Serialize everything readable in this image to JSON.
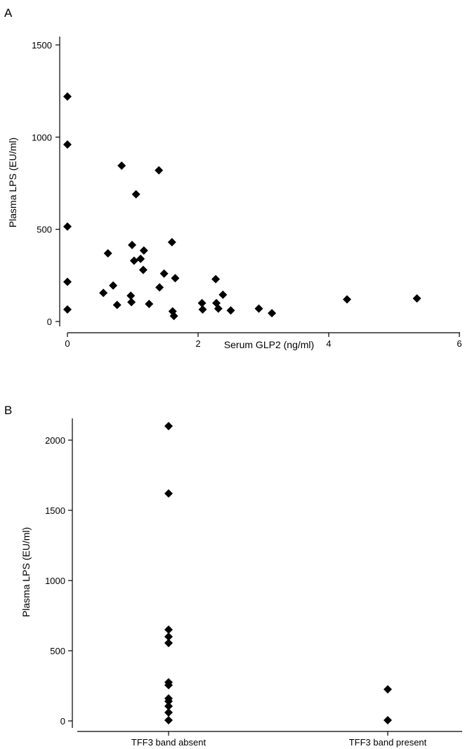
{
  "chart_data": [
    {
      "type": "scatter",
      "panel_label": "A",
      "xlabel": "Serum GLP2 (ng/ml)",
      "ylabel": "Plasma LPS (EU/ml)",
      "xlim": [
        0,
        6
      ],
      "ylim": [
        0,
        1500
      ],
      "xticks": [
        0,
        2,
        4,
        6
      ],
      "yticks": [
        0,
        500,
        1000,
        1500
      ],
      "grid": false,
      "marker": "diamond",
      "points": [
        [
          0,
          1220
        ],
        [
          0,
          960
        ],
        [
          0,
          515
        ],
        [
          0,
          215
        ],
        [
          0,
          65
        ],
        [
          0.55,
          155
        ],
        [
          0.62,
          370
        ],
        [
          0.7,
          195
        ],
        [
          0.76,
          90
        ],
        [
          0.83,
          845
        ],
        [
          0.97,
          140
        ],
        [
          0.98,
          105
        ],
        [
          0.99,
          415
        ],
        [
          1.02,
          330
        ],
        [
          1.05,
          690
        ],
        [
          1.12,
          340
        ],
        [
          1.16,
          280
        ],
        [
          1.17,
          385
        ],
        [
          1.25,
          95
        ],
        [
          1.4,
          820
        ],
        [
          1.41,
          185
        ],
        [
          1.48,
          260
        ],
        [
          1.6,
          430
        ],
        [
          1.61,
          55
        ],
        [
          1.63,
          30
        ],
        [
          1.65,
          235
        ],
        [
          2.06,
          100
        ],
        [
          2.07,
          65
        ],
        [
          2.27,
          230
        ],
        [
          2.28,
          100
        ],
        [
          2.31,
          70
        ],
        [
          2.38,
          145
        ],
        [
          2.5,
          60
        ],
        [
          2.93,
          70
        ],
        [
          3.13,
          45
        ],
        [
          4.28,
          120
        ],
        [
          5.35,
          125
        ]
      ]
    },
    {
      "type": "strip",
      "panel_label": "B",
      "xlabel": "",
      "ylabel": "Plasma LPS (EU/ml)",
      "categories": [
        "TFF3 band absent",
        "TFF3 band present"
      ],
      "ylim": [
        0,
        2150
      ],
      "yticks": [
        0,
        500,
        1000,
        1500,
        2000
      ],
      "grid": false,
      "marker": "diamond",
      "series": [
        {
          "category": "TFF3 band absent",
          "values": [
            2100,
            1620,
            650,
            600,
            555,
            275,
            255,
            160,
            140,
            105,
            60,
            5
          ]
        },
        {
          "category": "TFF3 band present",
          "values": [
            225,
            5
          ]
        }
      ]
    }
  ]
}
